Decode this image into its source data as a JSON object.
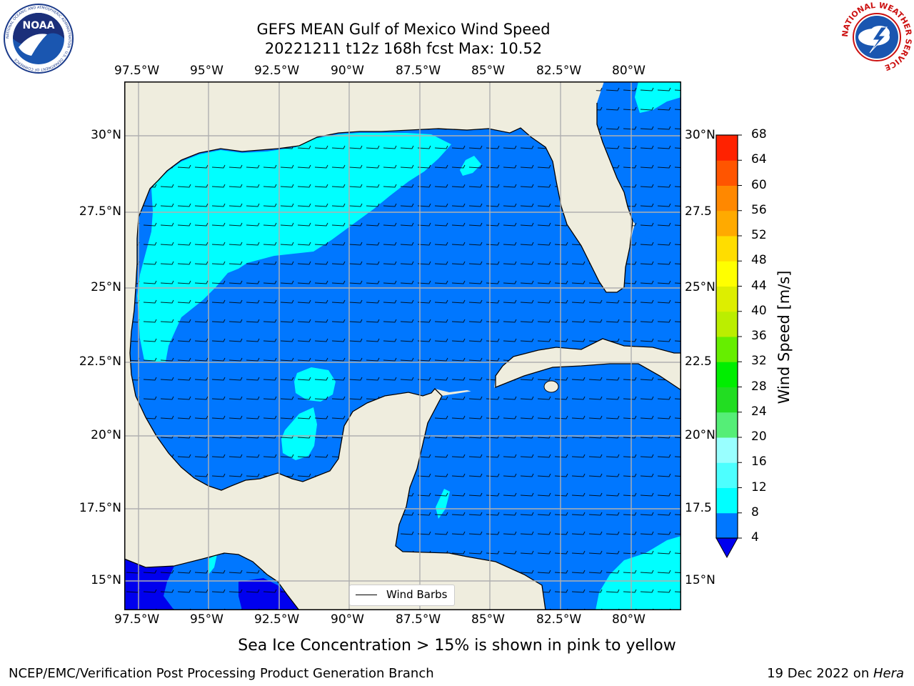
{
  "title": "GEFS MEAN Gulf of Mexico Wind Speed",
  "subtitle": "20221211 t12z 168h fcst   Max: 10.52",
  "lon_labels": [
    "97.5°W",
    "95°W",
    "92.5°W",
    "90°W",
    "87.5°W",
    "85°W",
    "82.5°W",
    "80°W"
  ],
  "lat_labels_left": [
    "30°N",
    "27.5°N",
    "25°N",
    "22.5°N",
    "20°N",
    "17.5°N",
    "15°N"
  ],
  "lat_labels_right": [
    "30°N",
    "27.5",
    "25°N",
    "22.5",
    "20°N",
    "17.5",
    "15°N"
  ],
  "colorbar": {
    "label": "Wind Speed [m/s]",
    "ticks": [
      "4",
      "8",
      "12",
      "16",
      "20",
      "24",
      "28",
      "32",
      "36",
      "40",
      "44",
      "48",
      "52",
      "56",
      "60",
      "64",
      "68"
    ],
    "colors": [
      "#0077ff",
      "#00ffff",
      "#4dffff",
      "#99ffff",
      "#55ee77",
      "#22dd22",
      "#00ee00",
      "#66ee00",
      "#bbee00",
      "#ddee00",
      "#ffff00",
      "#ffdd00",
      "#ffaa00",
      "#ff8800",
      "#ff5500",
      "#ff2200"
    ],
    "under_color": "#0000ee"
  },
  "legend": {
    "label": "Wind Barbs"
  },
  "note": "Sea Ice Concentration > 15% is shown in pink to yellow",
  "footer_left": "NCEP/EMC/Verification Post Processing Product Generation Branch",
  "footer_right_prefix": "19 Dec 2022 on ",
  "footer_right_host": "Hera",
  "logos": {
    "noaa_text": "NOAA",
    "noaa_ring": "NATIONAL OCEANIC AND ATMOSPHERIC ADMINISTRATION · U.S. DEPARTMENT OF COMMERCE",
    "nws_ring": "NATIONAL WEATHER SERVICE"
  }
}
